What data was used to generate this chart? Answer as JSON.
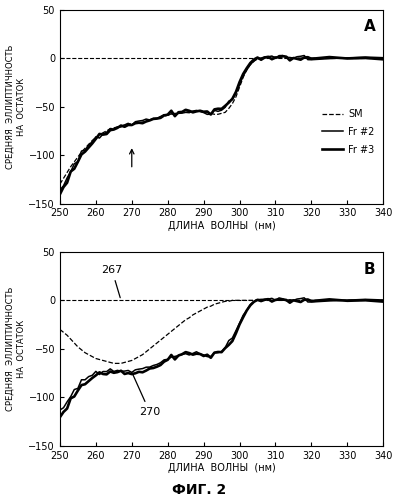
{
  "xlim": [
    250,
    340
  ],
  "ylim": [
    -150,
    50
  ],
  "yticks": [
    -150,
    -100,
    -50,
    0,
    50
  ],
  "xticks": [
    250,
    260,
    270,
    280,
    290,
    300,
    310,
    320,
    330,
    340
  ],
  "xlabel": "ДЛИНА  ВОЛНЫ  (нм)",
  "ylabel": "СРЕДНЯЯ  ЭЛЛИПТИЧНОСТЬ\nНА  ОСТАТОК",
  "panel_A_label": "A",
  "panel_B_label": "B",
  "legend_SM": "SM",
  "legend_Fr2": "Fr #2",
  "legend_Fr3": "Fr #3",
  "fig_label": "ФИГ. 2"
}
